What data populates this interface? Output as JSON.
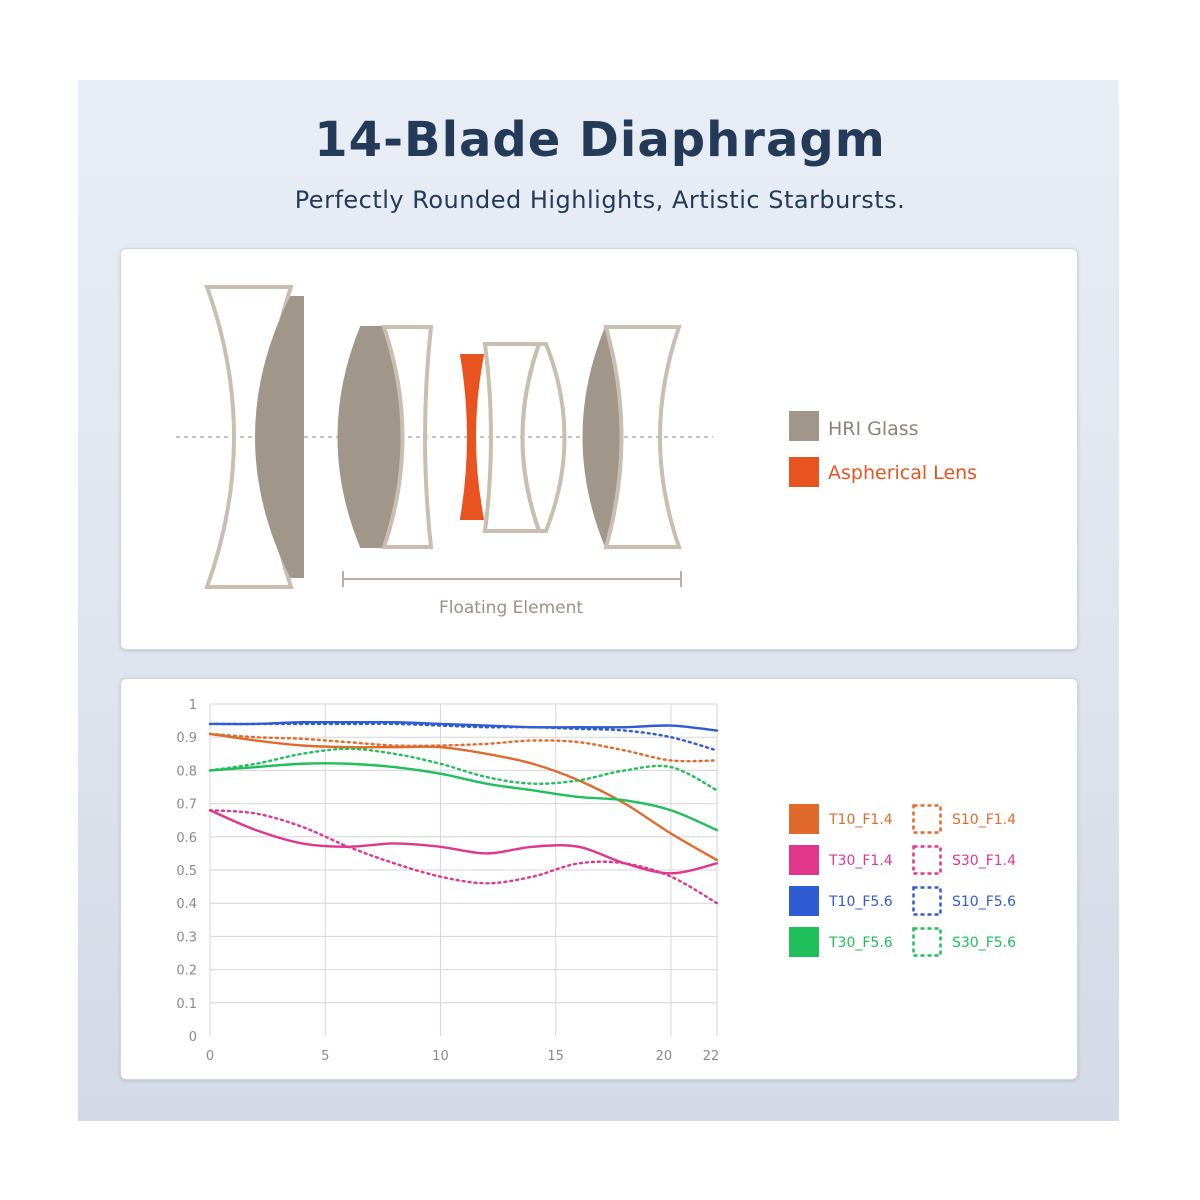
{
  "header": {
    "title": "14-Blade Diaphragm",
    "subtitle": "Perfectly Rounded Highlights, Artistic Starbursts."
  },
  "lens_diagram": {
    "legend": [
      {
        "label": "HRI Glass",
        "color": "#a0968a",
        "text_color": "#8c8478"
      },
      {
        "label": "Aspherical Lens",
        "color": "#e8531f",
        "text_color": "#e8531f"
      }
    ],
    "floating_label": "Floating Element",
    "colors": {
      "outline": "#cabeb0",
      "hri": "#a0968a",
      "aspherical": "#e8531f",
      "axis": "#b8b0a6"
    }
  },
  "chart_data": {
    "type": "line",
    "title": "",
    "xlabel": "",
    "ylabel": "",
    "xlim": [
      0,
      22
    ],
    "ylim": [
      0,
      1
    ],
    "x_ticks": [
      0,
      5,
      10,
      15,
      20,
      22
    ],
    "y_ticks": [
      0,
      0.1,
      0.2,
      0.3,
      0.4,
      0.5,
      0.6,
      0.7,
      0.8,
      0.9,
      1
    ],
    "y_tick_labels": [
      "0",
      "0.1",
      "0.2",
      "0.3",
      "0.4",
      "0.5",
      "0.6",
      "0.7",
      "0.8",
      "0.9",
      "1"
    ],
    "x_tick_labels": [
      "0",
      "5",
      "10",
      "15",
      "20",
      "22"
    ],
    "grid": true,
    "legend_position": "right",
    "series": [
      {
        "name": "T10_F1.4",
        "color": "#e06a2c",
        "style": "solid",
        "x": [
          0,
          2,
          4,
          6,
          8,
          10,
          12,
          14,
          16,
          18,
          20,
          22
        ],
        "y": [
          0.91,
          0.89,
          0.875,
          0.87,
          0.87,
          0.87,
          0.85,
          0.82,
          0.77,
          0.7,
          0.61,
          0.53
        ]
      },
      {
        "name": "S10_F1.4",
        "color": "#e06a2c",
        "style": "dotted",
        "x": [
          0,
          2,
          4,
          6,
          8,
          10,
          12,
          14,
          16,
          18,
          20,
          22
        ],
        "y": [
          0.91,
          0.9,
          0.895,
          0.885,
          0.875,
          0.875,
          0.88,
          0.89,
          0.885,
          0.86,
          0.83,
          0.83
        ]
      },
      {
        "name": "T30_F1.4",
        "color": "#e0378d",
        "style": "solid",
        "x": [
          0,
          2,
          4,
          6,
          8,
          10,
          12,
          14,
          16,
          18,
          20,
          22
        ],
        "y": [
          0.68,
          0.62,
          0.58,
          0.57,
          0.58,
          0.57,
          0.55,
          0.57,
          0.57,
          0.52,
          0.49,
          0.52
        ]
      },
      {
        "name": "S30_F1.4",
        "color": "#e0378d",
        "style": "dotted",
        "x": [
          0,
          2,
          4,
          6,
          8,
          10,
          12,
          14,
          16,
          18,
          20,
          22
        ],
        "y": [
          0.68,
          0.67,
          0.63,
          0.57,
          0.52,
          0.48,
          0.46,
          0.48,
          0.52,
          0.52,
          0.48,
          0.4
        ]
      },
      {
        "name": "T10_F5.6",
        "color": "#2f5bd3",
        "style": "solid",
        "x": [
          0,
          2,
          4,
          6,
          8,
          10,
          12,
          14,
          16,
          18,
          20,
          22
        ],
        "y": [
          0.94,
          0.94,
          0.945,
          0.945,
          0.945,
          0.94,
          0.935,
          0.93,
          0.93,
          0.93,
          0.935,
          0.92
        ]
      },
      {
        "name": "S10_F5.6",
        "color": "#2f5bd3",
        "style": "dotted",
        "x": [
          0,
          2,
          4,
          6,
          8,
          10,
          12,
          14,
          16,
          18,
          20,
          22
        ],
        "y": [
          0.94,
          0.94,
          0.94,
          0.94,
          0.94,
          0.935,
          0.93,
          0.93,
          0.925,
          0.92,
          0.9,
          0.86
        ]
      },
      {
        "name": "T30_F5.6",
        "color": "#1fbf5a",
        "style": "solid",
        "x": [
          0,
          2,
          4,
          6,
          8,
          10,
          12,
          14,
          16,
          18,
          20,
          22
        ],
        "y": [
          0.8,
          0.81,
          0.82,
          0.82,
          0.81,
          0.79,
          0.76,
          0.74,
          0.72,
          0.71,
          0.68,
          0.62
        ]
      },
      {
        "name": "S30_F5.6",
        "color": "#1fbf5a",
        "style": "dotted",
        "x": [
          0,
          2,
          4,
          6,
          8,
          10,
          12,
          14,
          16,
          18,
          20,
          22
        ],
        "y": [
          0.8,
          0.82,
          0.85,
          0.865,
          0.85,
          0.82,
          0.78,
          0.76,
          0.77,
          0.8,
          0.81,
          0.74
        ]
      }
    ]
  }
}
